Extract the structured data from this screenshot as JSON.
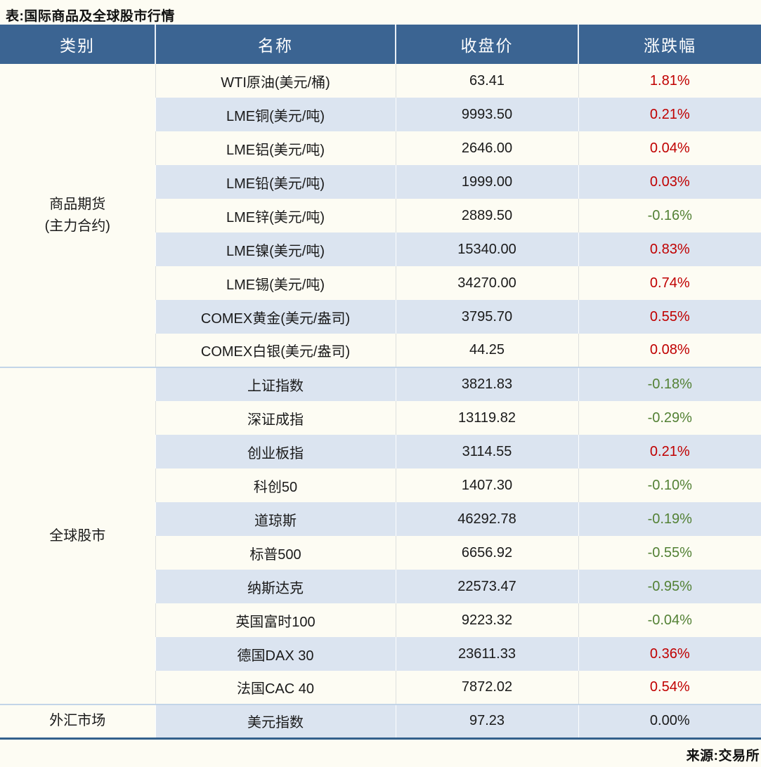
{
  "title": "表:国际商品及全球股市行情",
  "source": "来源:交易所",
  "colors": {
    "header_bg": "#3B6492",
    "row_alt_bg": "#DBE4F0",
    "page_bg": "#FDFCF3",
    "up_red": "#C00000",
    "down_green": "#538135",
    "bottom_border": "#33608C"
  },
  "table": {
    "headers": [
      "类别",
      "名称",
      "收盘价",
      "涨跌幅"
    ],
    "groups": [
      {
        "category_lines": [
          "商品期货",
          "(主力合约)"
        ],
        "rows": [
          {
            "name": "WTI原油(美元/桶)",
            "close": "63.41",
            "change": "1.81%",
            "direction": "up"
          },
          {
            "name": "LME铜(美元/吨)",
            "close": "9993.50",
            "change": "0.21%",
            "direction": "up"
          },
          {
            "name": "LME铝(美元/吨)",
            "close": "2646.00",
            "change": "0.04%",
            "direction": "up"
          },
          {
            "name": "LME铅(美元/吨)",
            "close": "1999.00",
            "change": "0.03%",
            "direction": "up"
          },
          {
            "name": "LME锌(美元/吨)",
            "close": "2889.50",
            "change": "-0.16%",
            "direction": "down"
          },
          {
            "name": "LME镍(美元/吨)",
            "close": "15340.00",
            "change": "0.83%",
            "direction": "up"
          },
          {
            "name": "LME锡(美元/吨)",
            "close": "34270.00",
            "change": "0.74%",
            "direction": "up"
          },
          {
            "name": "COMEX黄金(美元/盎司)",
            "close": "3795.70",
            "change": "0.55%",
            "direction": "up"
          },
          {
            "name": "COMEX白银(美元/盎司)",
            "close": "44.25",
            "change": "0.08%",
            "direction": "up"
          }
        ]
      },
      {
        "category_lines": [
          "全球股市"
        ],
        "rows": [
          {
            "name": "上证指数",
            "close": "3821.83",
            "change": "-0.18%",
            "direction": "down"
          },
          {
            "name": "深证成指",
            "close": "13119.82",
            "change": "-0.29%",
            "direction": "down"
          },
          {
            "name": "创业板指",
            "close": "3114.55",
            "change": "0.21%",
            "direction": "up"
          },
          {
            "name": "科创50",
            "close": "1407.30",
            "change": "-0.10%",
            "direction": "down"
          },
          {
            "name": "道琼斯",
            "close": "46292.78",
            "change": "-0.19%",
            "direction": "down"
          },
          {
            "name": "标普500",
            "close": "6656.92",
            "change": "-0.55%",
            "direction": "down"
          },
          {
            "name": "纳斯达克",
            "close": "22573.47",
            "change": "-0.95%",
            "direction": "down"
          },
          {
            "name": "英国富时100",
            "close": "9223.32",
            "change": "-0.04%",
            "direction": "down"
          },
          {
            "name": "德国DAX 30",
            "close": "23611.33",
            "change": "0.36%",
            "direction": "up"
          },
          {
            "name": "法国CAC 40",
            "close": "7872.02",
            "change": "0.54%",
            "direction": "up"
          }
        ]
      },
      {
        "category_lines": [
          "外汇市场"
        ],
        "rows": [
          {
            "name": "美元指数",
            "close": "97.23",
            "change": "0.00%",
            "direction": "flat"
          }
        ]
      }
    ]
  }
}
